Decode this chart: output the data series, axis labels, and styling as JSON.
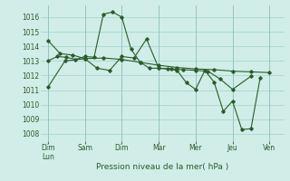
{
  "xlabel": "Pression niveau de la mer( hPa )",
  "xtick_labels": [
    "Dim\nLun",
    "Sam",
    "Dim",
    "Mar",
    "Mer",
    "Jeu",
    "Ven"
  ],
  "xtick_positions": [
    0,
    1,
    2,
    3,
    4,
    5,
    6
  ],
  "ylim": [
    1007.5,
    1016.8
  ],
  "yticks": [
    1008,
    1009,
    1010,
    1011,
    1012,
    1013,
    1014,
    1015,
    1016
  ],
  "bg_color": "#d0ede8",
  "grid_color": "#a8d8ce",
  "line_color": "#2a5c2a",
  "lines": [
    [
      1011.2,
      1013.0,
      1013.15,
      1013.2,
      1013.1,
      1012.9,
      1012.7,
      1012.55,
      1012.45,
      1012.4,
      1012.3,
      1012.25,
      1012.2
    ],
    [
      1013.0,
      1013.3,
      1013.25,
      1013.1,
      1013.3,
      1013.25,
      1016.2,
      1016.35,
      1016.0,
      1013.8,
      1012.9,
      1012.5,
      1012.5,
      1012.45,
      1012.35,
      1011.5,
      1011.05,
      1012.35,
      1011.55,
      1009.55,
      1010.25,
      1008.3,
      1008.35,
      1011.85
    ],
    [
      1014.4,
      1013.5,
      1013.4,
      1013.15,
      1012.5,
      1012.35,
      1013.3,
      1013.2,
      1014.5,
      1012.5,
      1012.45,
      1012.4,
      1012.35,
      1012.3,
      1011.75,
      1011.05,
      1011.95
    ]
  ],
  "line_x": [
    [
      0,
      0.46,
      1.0,
      1.5,
      2.0,
      2.5,
      3.0,
      3.5,
      4.0,
      4.5,
      5.0,
      5.5,
      6.0
    ],
    [
      0,
      0.25,
      0.5,
      0.75,
      1.0,
      1.25,
      1.5,
      1.75,
      2.0,
      2.25,
      2.5,
      2.75,
      3.0,
      3.25,
      3.5,
      3.75,
      4.0,
      4.25,
      4.5,
      4.75,
      5.0,
      5.25,
      5.5,
      5.75
    ],
    [
      0,
      0.33,
      0.67,
      1.0,
      1.33,
      1.67,
      2.0,
      2.33,
      2.67,
      3.0,
      3.33,
      3.67,
      4.0,
      4.33,
      4.67,
      5.0,
      5.5
    ]
  ]
}
